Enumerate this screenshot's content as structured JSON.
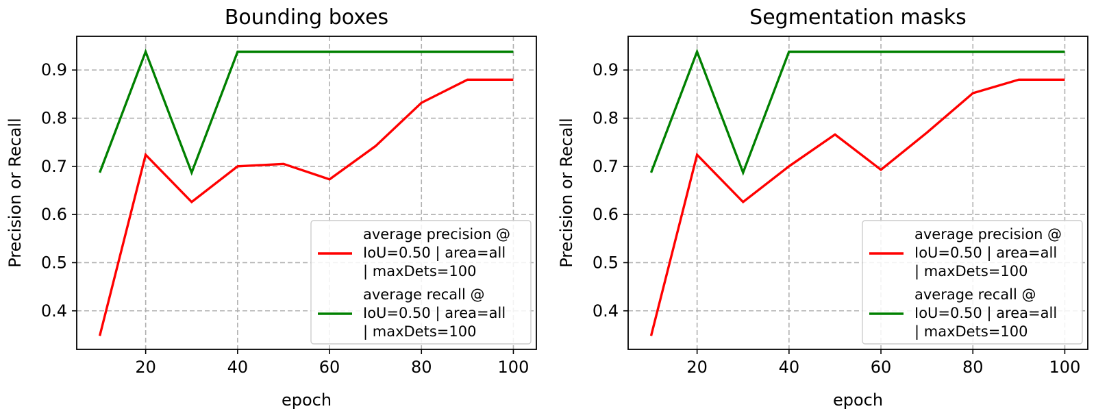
{
  "colors": {
    "background": "#ffffff",
    "grid": "#b0b0b0",
    "axes": "#000000",
    "precision": "#ff0000",
    "recall": "#008000"
  },
  "chart_data": [
    {
      "type": "line",
      "title": "Bounding boxes",
      "xlabel": "epoch",
      "ylabel": "Precision or Recall",
      "xlim": [
        5,
        105
      ],
      "ylim": [
        0.32,
        0.97
      ],
      "xticks": [
        20,
        40,
        60,
        80,
        100
      ],
      "yticks": [
        0.4,
        0.5,
        0.6,
        0.7,
        0.8,
        0.9
      ],
      "grid": true,
      "legend_position": "lower-right",
      "x": [
        10,
        20,
        30,
        40,
        50,
        60,
        70,
        80,
        90,
        100
      ],
      "series": [
        {
          "name": "average precision @ IoU=0.50 | area=all | maxDets=100",
          "legend_lines": [
            "average precision @",
            "IoU=0.50 | area=all",
            "| maxDets=100"
          ],
          "color": "#ff0000",
          "values": [
            0.348,
            0.724,
            0.626,
            0.7,
            0.705,
            0.673,
            0.742,
            0.832,
            0.88,
            0.88
          ]
        },
        {
          "name": "average recall @ IoU=0.50 | area=all | maxDets=100",
          "legend_lines": [
            "average recall @",
            "IoU=0.50 | area=all",
            "| maxDets=100"
          ],
          "color": "#008000",
          "values": [
            0.687,
            0.938,
            0.687,
            0.938,
            0.938,
            0.938,
            0.938,
            0.938,
            0.938,
            0.938
          ]
        }
      ]
    },
    {
      "type": "line",
      "title": "Segmentation masks",
      "xlabel": "epoch",
      "ylabel": "Precision or Recall",
      "xlim": [
        5,
        105
      ],
      "ylim": [
        0.32,
        0.97
      ],
      "xticks": [
        20,
        40,
        60,
        80,
        100
      ],
      "yticks": [
        0.4,
        0.5,
        0.6,
        0.7,
        0.8,
        0.9
      ],
      "grid": true,
      "legend_position": "lower-right",
      "x": [
        10,
        20,
        30,
        40,
        50,
        60,
        70,
        80,
        90,
        100
      ],
      "series": [
        {
          "name": "average precision @ IoU=0.50 | area=all | maxDets=100",
          "legend_lines": [
            "average precision @",
            "IoU=0.50 | area=all",
            "| maxDets=100"
          ],
          "color": "#ff0000",
          "values": [
            0.348,
            0.724,
            0.626,
            0.7,
            0.766,
            0.693,
            0.77,
            0.852,
            0.88,
            0.88
          ]
        },
        {
          "name": "average recall @ IoU=0.50 | area=all | maxDets=100",
          "legend_lines": [
            "average recall @",
            "IoU=0.50 | area=all",
            "| maxDets=100"
          ],
          "color": "#008000",
          "values": [
            0.687,
            0.938,
            0.687,
            0.938,
            0.938,
            0.938,
            0.938,
            0.938,
            0.938,
            0.938
          ]
        }
      ]
    }
  ]
}
